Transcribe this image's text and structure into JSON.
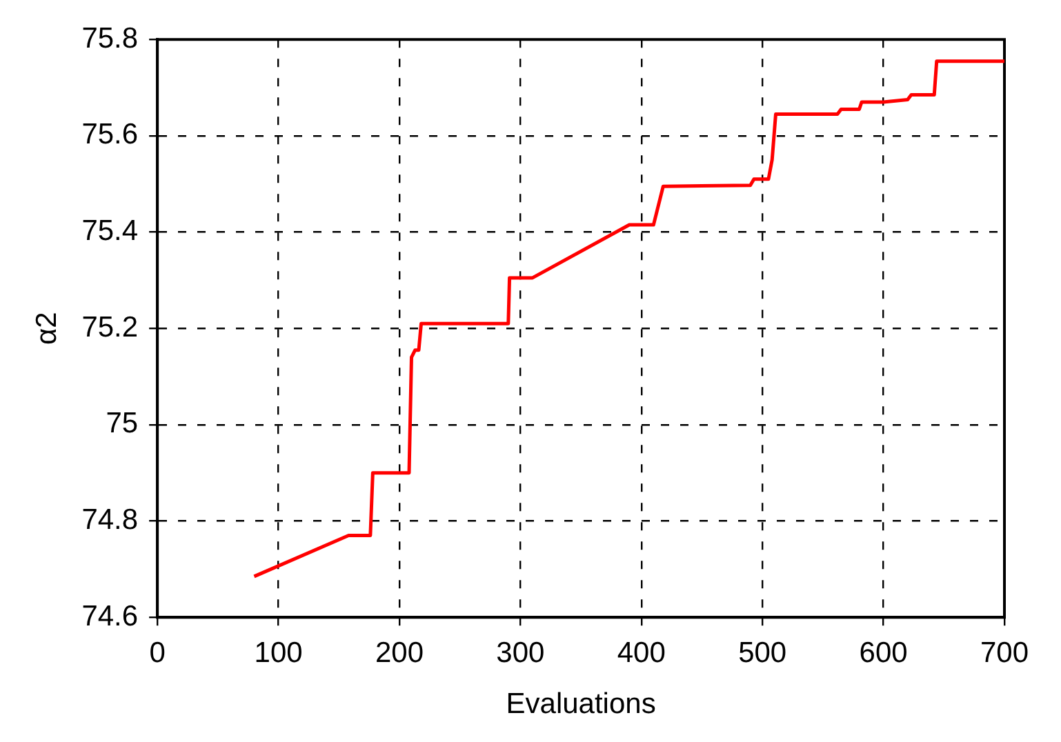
{
  "chart_data": {
    "type": "line",
    "xlabel": "Evaluations",
    "ylabel": "α2",
    "xlim": [
      0,
      700
    ],
    "xticks": [
      0,
      100,
      200,
      300,
      400,
      500,
      600,
      700
    ],
    "ylim": [
      74.6,
      75.8
    ],
    "yticks": [
      74.6,
      74.8,
      75,
      75.2,
      75.4,
      75.6,
      75.8
    ],
    "grid": true,
    "legend": false,
    "marker": "none",
    "line_style": "solid",
    "series": [
      {
        "color": "#ff0000",
        "x": [
          80,
          158,
          176,
          178,
          208,
          210,
          213,
          216,
          218,
          290,
          291,
          310,
          390,
          410,
          418,
          490,
          493,
          505,
          508,
          511,
          562,
          565,
          580,
          582,
          600,
          620,
          623,
          642,
          644,
          700
        ],
        "values": [
          74.685,
          74.77,
          74.77,
          74.9,
          74.9,
          75.14,
          75.155,
          75.155,
          75.21,
          75.21,
          75.305,
          75.305,
          75.415,
          75.415,
          75.495,
          75.497,
          75.51,
          75.51,
          75.55,
          75.645,
          75.645,
          75.655,
          75.655,
          75.67,
          75.67,
          75.675,
          75.685,
          75.685,
          75.755,
          75.755
        ]
      }
    ]
  }
}
